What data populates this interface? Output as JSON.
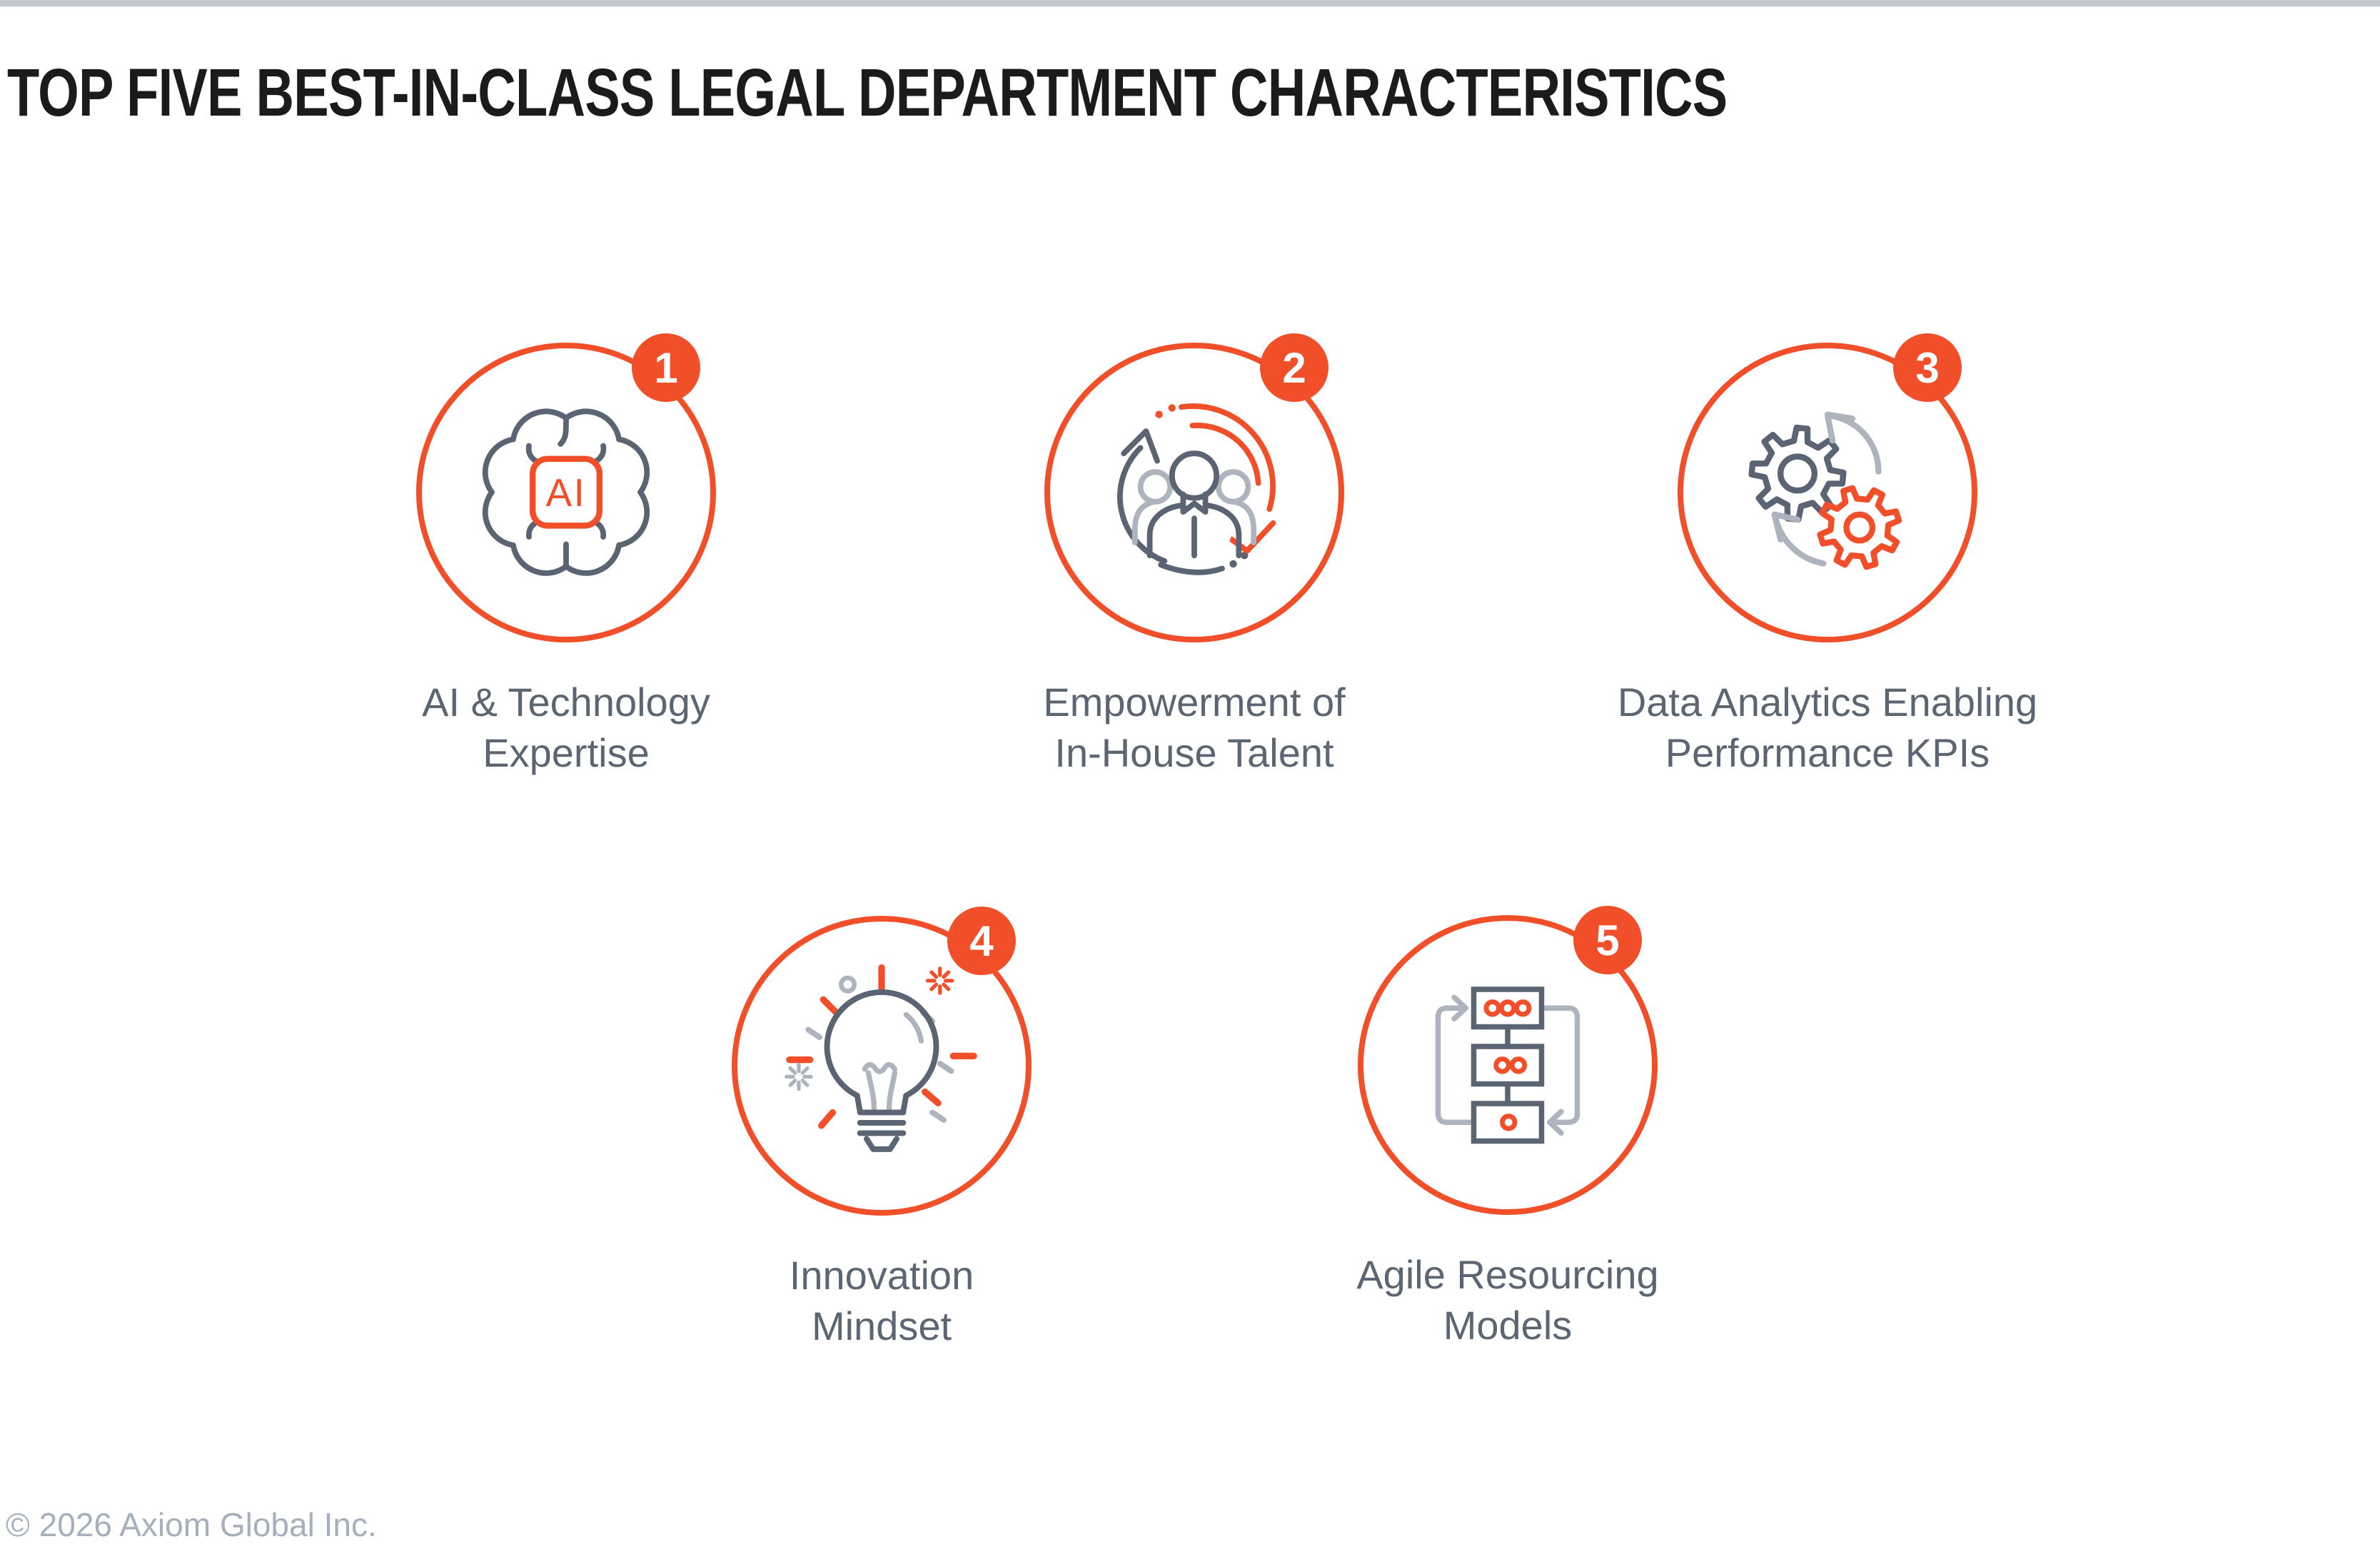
{
  "page": {
    "title": "TOP FIVE BEST-IN-CLASS LEGAL DEPARTMENT CHARACTERISTICS",
    "footer": "© 2026 Axiom Global Inc."
  },
  "colors": {
    "accent": "#F04F2A",
    "slate": "#5A6472",
    "light_gray": "#AEB4BE",
    "label": "#5C6672",
    "top_bar": "#C4C8CE",
    "title": "#1A1B1D",
    "footer": "#A7AFBC"
  },
  "items": [
    {
      "number": "1",
      "icon": "brain-ai-chip-icon",
      "chip_text": "AI",
      "label_line1": "AI & Technology",
      "label_line2": "Expertise"
    },
    {
      "number": "2",
      "icon": "people-cycle-icon",
      "label_line1": "Empowerment of",
      "label_line2": "In-House Talent"
    },
    {
      "number": "3",
      "icon": "gears-sync-icon",
      "label_line1": "Data Analytics Enabling",
      "label_line2": "Performance KPIs"
    },
    {
      "number": "4",
      "icon": "lightbulb-icon",
      "label_line1": "Innovation",
      "label_line2": "Mindset"
    },
    {
      "number": "5",
      "icon": "flowchart-loop-icon",
      "label_line1": "Agile Resourcing",
      "label_line2": "Models"
    }
  ]
}
